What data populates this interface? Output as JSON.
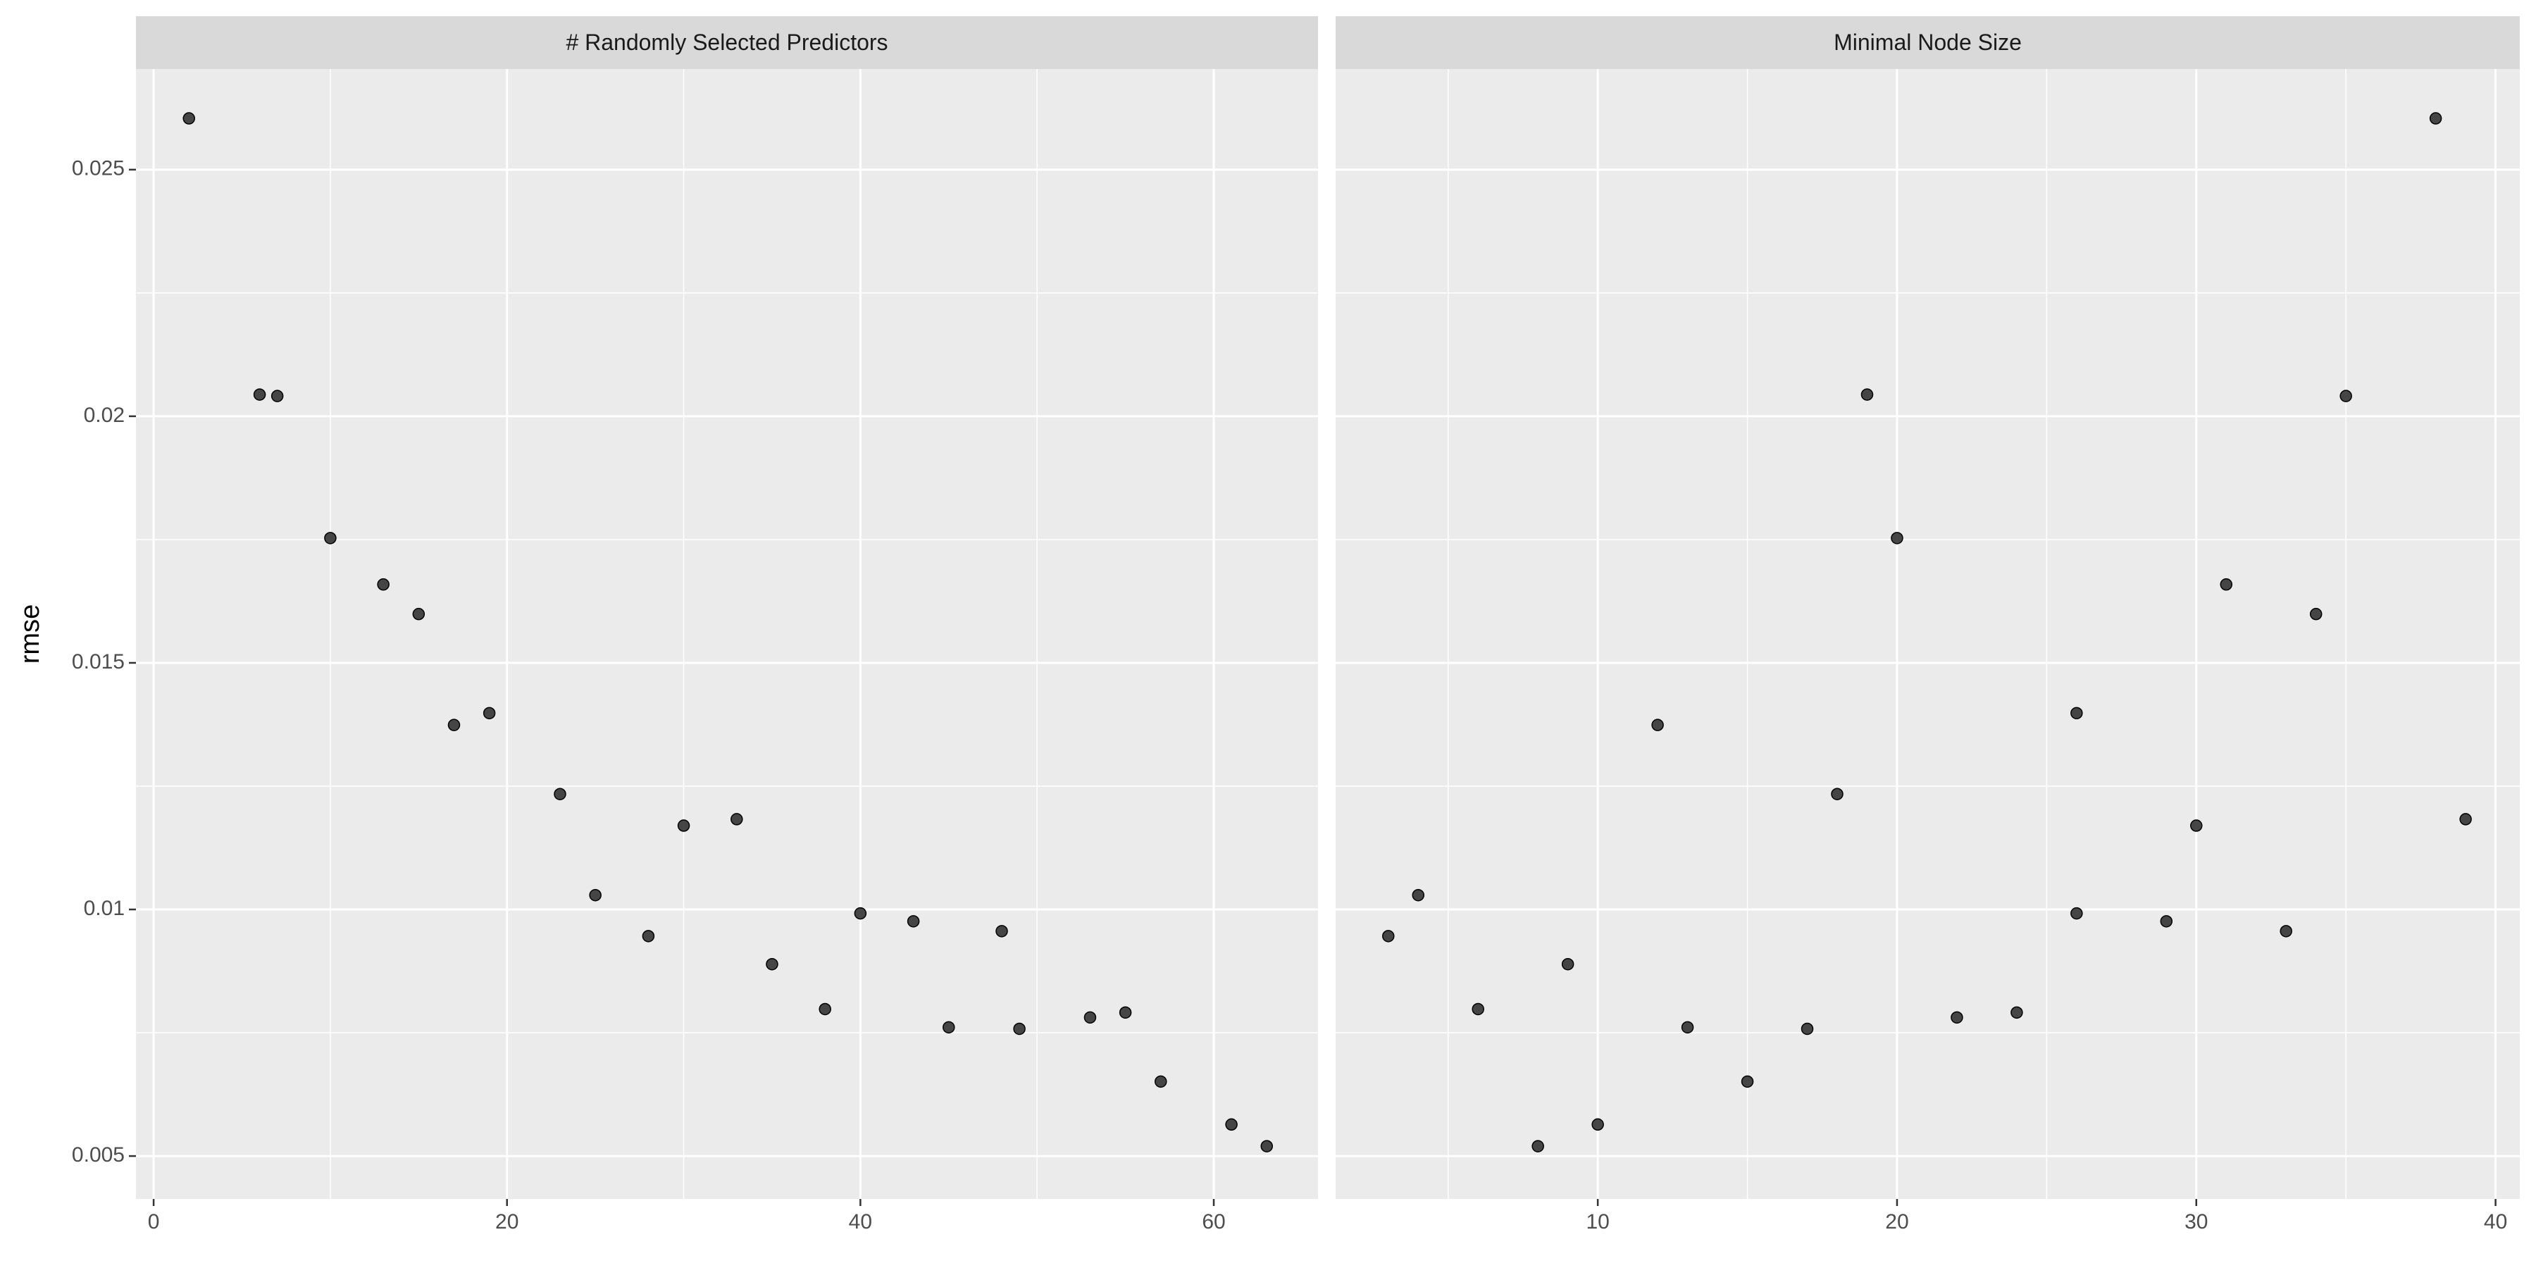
{
  "chart_data": [
    {
      "type": "scatter",
      "title": "# Randomly Selected Predictors",
      "ylabel": "rmse",
      "color": "#333333",
      "grid": true,
      "xlim": [
        -1.0,
        65.9
      ],
      "xticks": [
        0,
        20,
        40,
        60
      ],
      "ylim": [
        0.00413,
        0.02704
      ],
      "yticks": [
        0.005,
        0.01,
        0.015,
        0.02,
        0.025
      ],
      "x": [
        2,
        6,
        7,
        10,
        13,
        15,
        17,
        19,
        23,
        25,
        28,
        30,
        33,
        35,
        38,
        40,
        43,
        45,
        48,
        49,
        53,
        55,
        57,
        61,
        63
      ],
      "values": [
        0.02604,
        0.02044,
        0.02041,
        0.01753,
        0.01659,
        0.01599,
        0.01374,
        0.01398,
        0.01234,
        0.01029,
        0.00946,
        0.0117,
        0.01183,
        0.00889,
        0.00798,
        0.00992,
        0.00976,
        0.00761,
        0.00956,
        0.00758,
        0.00781,
        0.00791,
        0.00651,
        0.00564,
        0.0052
      ]
    },
    {
      "type": "scatter",
      "title": "Minimal Node Size",
      "color": "#333333",
      "grid": true,
      "xlim": [
        1.24,
        40.81
      ],
      "xticks": [
        10,
        20,
        30,
        40
      ],
      "ylim": [
        0.00413,
        0.02704
      ],
      "yticks": [
        0.005,
        0.01,
        0.015,
        0.02,
        0.025
      ],
      "x": [
        3,
        4,
        6,
        8,
        9,
        10,
        12,
        13,
        15,
        17,
        18,
        19,
        20,
        22,
        24,
        26,
        26,
        29,
        30,
        31,
        33,
        34,
        35,
        38,
        39
      ],
      "values": [
        0.00946,
        0.01029,
        0.00798,
        0.0052,
        0.00889,
        0.00564,
        0.01374,
        0.00761,
        0.00651,
        0.00758,
        0.01234,
        0.02044,
        0.01753,
        0.00781,
        0.00791,
        0.01398,
        0.00992,
        0.00976,
        0.0117,
        0.01659,
        0.00956,
        0.01599,
        0.02041,
        0.02604,
        0.01183
      ]
    }
  ]
}
